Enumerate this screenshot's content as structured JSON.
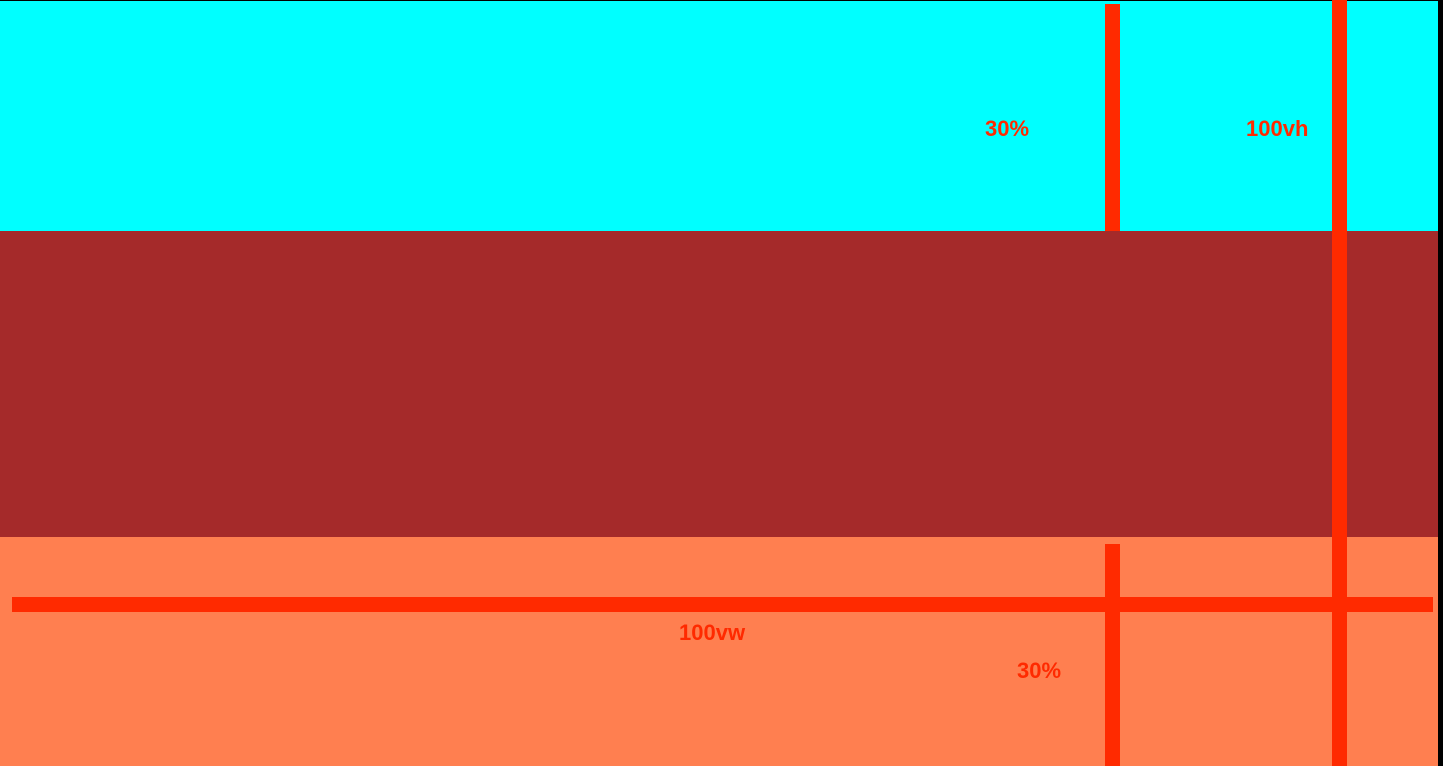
{
  "colors": {
    "background": "#000000",
    "band_top": "#00ffff",
    "band_middle": "#a52a2a",
    "band_bottom": "#ff7f50",
    "marker": "#ff2a00"
  },
  "labels": {
    "top_section_height": "30%",
    "viewport_height": "100vh",
    "viewport_width": "100vw",
    "bottom_section_height": "30%"
  }
}
